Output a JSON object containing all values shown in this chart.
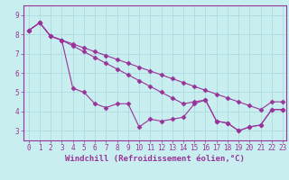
{
  "xlabel": "Windchill (Refroidissement éolien,°C)",
  "background_color": "#c8eef0",
  "grid_color": "#a8d8dc",
  "line_color": "#993399",
  "spine_color": "#993399",
  "tick_color": "#993399",
  "xlim": [
    -0.5,
    23.3
  ],
  "ylim": [
    2.5,
    9.5
  ],
  "xticks": [
    0,
    1,
    2,
    3,
    4,
    5,
    6,
    7,
    8,
    9,
    10,
    11,
    12,
    13,
    14,
    15,
    16,
    17,
    18,
    19,
    20,
    21,
    22,
    23
  ],
  "yticks": [
    3,
    4,
    5,
    6,
    7,
    8,
    9
  ],
  "series": [
    [
      8.2,
      8.6,
      7.9,
      7.7,
      5.2,
      5.0,
      4.4,
      4.2,
      4.4,
      4.4,
      3.2,
      3.6,
      3.5,
      3.6,
      3.7,
      4.4,
      4.6,
      3.5,
      3.4,
      3.0,
      3.2,
      3.3,
      4.1,
      4.1
    ],
    [
      8.2,
      8.6,
      7.9,
      7.7,
      7.5,
      7.3,
      7.1,
      6.9,
      6.7,
      6.5,
      6.3,
      6.1,
      5.9,
      5.7,
      5.5,
      5.3,
      5.1,
      4.9,
      4.7,
      4.5,
      4.3,
      4.1,
      4.5,
      4.5
    ],
    [
      8.2,
      8.6,
      7.9,
      7.7,
      7.4,
      7.1,
      6.8,
      6.5,
      6.2,
      5.9,
      5.6,
      5.3,
      5.0,
      4.7,
      4.4,
      4.5,
      4.6,
      3.5,
      3.4,
      3.0,
      3.2,
      3.3,
      4.1,
      4.1
    ]
  ],
  "marker": "D",
  "markersize": 2.5,
  "linewidth": 0.8,
  "tick_fontsize": 5.5,
  "xlabel_fontsize": 6.5
}
